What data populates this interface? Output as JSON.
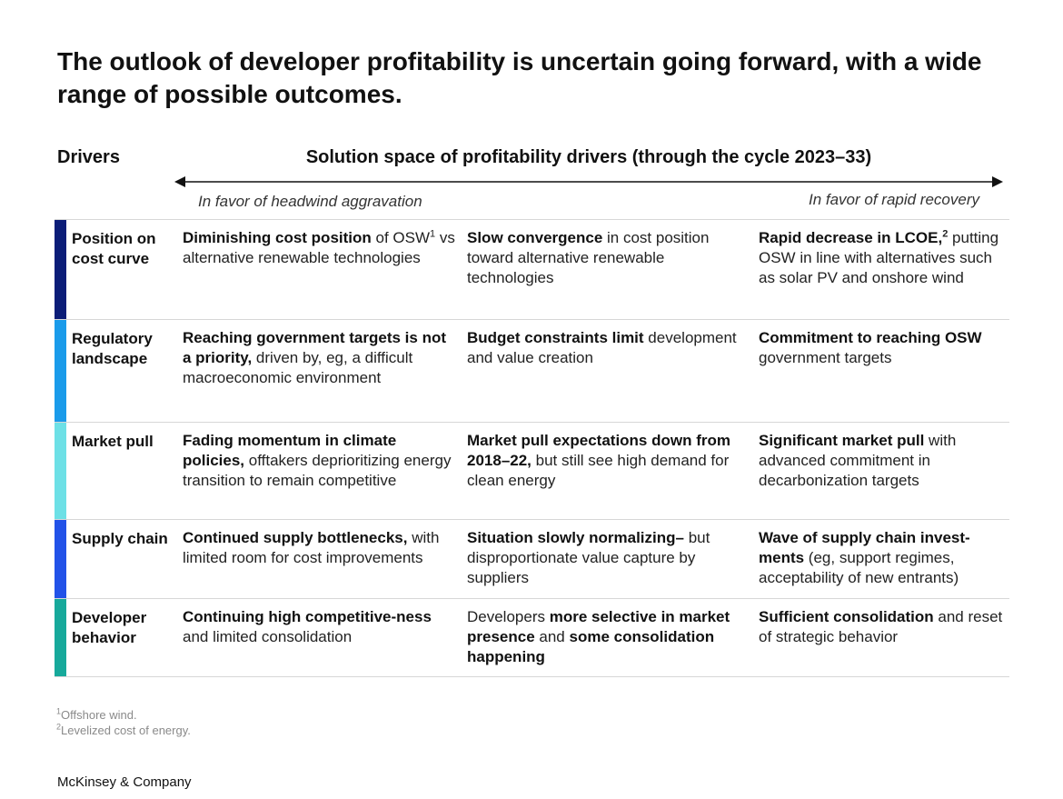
{
  "title": "The outlook of developer profitability is uncertain going forward, with a wide range of possible outcomes.",
  "header": {
    "drivers": "Drivers",
    "solution_space": "Solution space of profitability drivers (through the cycle 2023–33)",
    "left_favor": "In favor of headwind aggravation",
    "right_favor": "In favor of rapid recovery"
  },
  "colors": {
    "bar_position": "#0b1d78",
    "bar_regulatory": "#1a9bea",
    "bar_market": "#6de0e6",
    "bar_supply": "#2252e8",
    "bar_developer": "#17a99b"
  },
  "rows": [
    {
      "driver": "Position on cost curve",
      "c1": [
        {
          "t": "Diminishing cost position",
          "b": true
        },
        {
          "t": " of OSW"
        },
        {
          "t": "1",
          "sup": true
        },
        {
          "t": " vs alternative renewable technologies"
        }
      ],
      "c2": [
        {
          "t": "Slow convergence",
          "b": true
        },
        {
          "t": " in cost position toward alternative renewable technologies"
        }
      ],
      "c3": [
        {
          "t": "Rapid decrease in LCOE,",
          "b": true
        },
        {
          "t": "2",
          "sup": true,
          "b": true
        },
        {
          "t": " putting OSW in line with alternatives such as solar PV and onshore wind"
        }
      ]
    },
    {
      "driver": "Regulatory landscape",
      "c1": [
        {
          "t": "Reaching government targets is not a priority,",
          "b": true
        },
        {
          "t": " driven by, eg, a difficult macroeconomic environment"
        }
      ],
      "c2": [
        {
          "t": "Budget constraints limit",
          "b": true
        },
        {
          "t": " development and value creation"
        }
      ],
      "c3": [
        {
          "t": "Commitment to reaching OSW",
          "b": true
        },
        {
          "t": " government targets"
        }
      ]
    },
    {
      "driver": "Market pull",
      "c1": [
        {
          "t": "Fading momentum in climate policies,",
          "b": true
        },
        {
          "t": " offtakers deprioritizing energy transition to remain competitive"
        }
      ],
      "c2": [
        {
          "t": "Market pull expectations down from 2018–22,",
          "b": true
        },
        {
          "t": " but still see high demand for clean energy"
        }
      ],
      "c3": [
        {
          "t": "Significant market pull",
          "b": true
        },
        {
          "t": " with advanced commitment in decarbonization targets"
        }
      ]
    },
    {
      "driver": "Supply chain",
      "c1": [
        {
          "t": "Continued supply bottlenecks,",
          "b": true
        },
        {
          "t": " with limited room for cost improvements"
        }
      ],
      "c2": [
        {
          "t": "Situation slowly normalizing–",
          "b": true
        },
        {
          "t": " but disproportionate value capture by suppliers"
        }
      ],
      "c3": [
        {
          "t": "Wave of supply chain invest-ments",
          "b": true
        },
        {
          "t": " (eg, support regimes, acceptability of new entrants)"
        }
      ]
    },
    {
      "driver": "Developer behavior",
      "c1": [
        {
          "t": "Continuing high competitive-ness",
          "b": true
        },
        {
          "t": " and limited consolidation"
        }
      ],
      "c2": [
        {
          "t": "Developers "
        },
        {
          "t": "more selective in market presence",
          "b": true
        },
        {
          "t": " and "
        },
        {
          "t": "some consolidation happening",
          "b": true
        }
      ],
      "c3": [
        {
          "t": "Sufficient consolidation",
          "b": true
        },
        {
          "t": " and reset of strategic behavior"
        }
      ]
    }
  ],
  "footnotes": [
    {
      "mark": "1",
      "text": "Offshore wind."
    },
    {
      "mark": "2",
      "text": "Levelized cost of energy."
    }
  ],
  "brand": "McKinsey & Company"
}
